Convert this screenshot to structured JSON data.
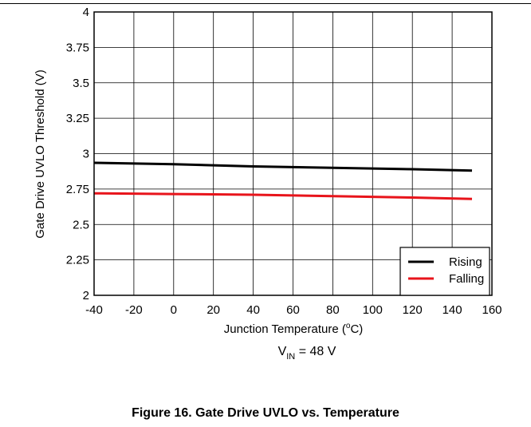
{
  "caption": "Figure 16. Gate Drive UVLO vs. Temperature",
  "chart_data": {
    "type": "line",
    "title": "",
    "xlabel": "Junction Temperature (",
    "xlabel_sup": "o",
    "xlabel_after": "C)",
    "ylabel": "Gate Drive UVLO Threshold (V)",
    "condition_main": "V",
    "condition_sub": "IN",
    "condition_rest": " = 48 V",
    "xlim": [
      -40,
      160
    ],
    "ylim": [
      2,
      4
    ],
    "xticks": [
      -40,
      -20,
      0,
      20,
      40,
      60,
      80,
      100,
      120,
      140,
      160
    ],
    "yticks": [
      2,
      2.25,
      2.5,
      2.75,
      3,
      3.25,
      3.5,
      3.75,
      4
    ],
    "ytick_labels": [
      "2",
      "2.25",
      "2.5",
      "2.75",
      "3",
      "3.25",
      "3.5",
      "3.75",
      "4"
    ],
    "grid": true,
    "legend_position": "bottom-right",
    "series": [
      {
        "name": "Rising",
        "color": "#000000",
        "x": [
          -40,
          0,
          40,
          80,
          120,
          150
        ],
        "y": [
          2.935,
          2.925,
          2.91,
          2.9,
          2.89,
          2.88
        ]
      },
      {
        "name": "Falling",
        "color": "#e8141b",
        "x": [
          -40,
          0,
          40,
          80,
          120,
          150
        ],
        "y": [
          2.72,
          2.715,
          2.71,
          2.7,
          2.69,
          2.68
        ]
      }
    ]
  }
}
